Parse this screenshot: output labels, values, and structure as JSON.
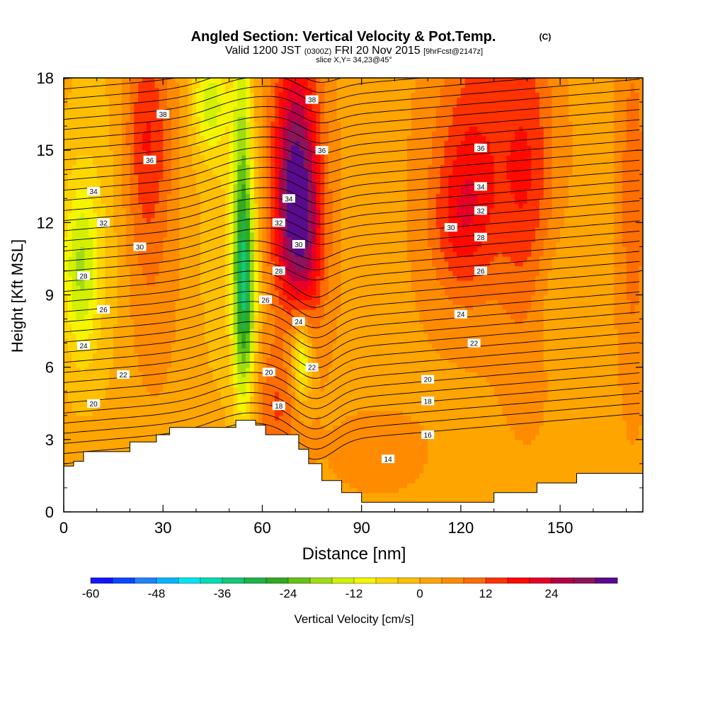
{
  "chart_data": {
    "type": "heatmap",
    "title": "Angled Section: Vertical Velocity & Pot.Temp.",
    "title_mark": "(C)",
    "subtitle_valid": "Valid 1200 JST",
    "subtitle_utc": "(0300Z)",
    "subtitle_date": "FRI 20 Nov 2015",
    "subtitle_fcst": "[9hrFcst@2147z]",
    "subtitle_slice": "slice X,Y= 34,23@45°",
    "xlabel": "Distance [nm]",
    "ylabel": "Height [Kft MSL]",
    "xlim": [
      0,
      175
    ],
    "ylim": [
      0,
      18
    ],
    "xticks": [
      "0",
      "30",
      "60",
      "90",
      "120",
      "150"
    ],
    "yticks": [
      "0",
      "3",
      "6",
      "9",
      "12",
      "15",
      "18"
    ],
    "colorbar": {
      "label": "Vertical Velocity [cm/s]",
      "ticks": [
        "-60",
        "-48",
        "-36",
        "-24",
        "-12",
        "0",
        "12",
        "24"
      ],
      "levels": [
        -60,
        -56,
        -52,
        -48,
        -44,
        -40,
        -36,
        -32,
        -28,
        -24,
        -20,
        -16,
        -12,
        -8,
        -4,
        0,
        4,
        8,
        12,
        16,
        20,
        24,
        28,
        32
      ],
      "colors": [
        "#1414ff",
        "#0a46ff",
        "#1e82ff",
        "#00b4ff",
        "#00e6f0",
        "#00dcb4",
        "#14c878",
        "#1eb446",
        "#32aa1e",
        "#64c314",
        "#a0dc14",
        "#d2f000",
        "#f5f500",
        "#ffd700",
        "#ffbe00",
        "#ffa500",
        "#ff8c00",
        "#ff6e00",
        "#ff3200",
        "#ff0a00",
        "#e60028",
        "#b40046",
        "#8c145a",
        "#5a0a8c"
      ]
    },
    "terrain_kft": [
      [
        0,
        1.9
      ],
      [
        3,
        1.9
      ],
      [
        3,
        2.1
      ],
      [
        6,
        2.1
      ],
      [
        6,
        2.5
      ],
      [
        20,
        2.5
      ],
      [
        20,
        2.9
      ],
      [
        28,
        2.9
      ],
      [
        28,
        3.2
      ],
      [
        32,
        3.2
      ],
      [
        32,
        3.5
      ],
      [
        52,
        3.5
      ],
      [
        52,
        3.8
      ],
      [
        58,
        3.8
      ],
      [
        58,
        3.6
      ],
      [
        61,
        3.6
      ],
      [
        61,
        3.2
      ],
      [
        71,
        3.2
      ],
      [
        71,
        2.6
      ],
      [
        74,
        2.6
      ],
      [
        74,
        2.0
      ],
      [
        78,
        2.0
      ],
      [
        78,
        1.3
      ],
      [
        84,
        1.3
      ],
      [
        84,
        0.8
      ],
      [
        90,
        0.8
      ],
      [
        90,
        0.4
      ],
      [
        130,
        0.4
      ],
      [
        130,
        0.8
      ],
      [
        143,
        0.8
      ],
      [
        143,
        1.2
      ],
      [
        155,
        1.2
      ],
      [
        155,
        1.6
      ],
      [
        175,
        1.6
      ]
    ],
    "theta_contours": [
      {
        "label": "14",
        "base": 2.2,
        "pos": [
          98,
          2.2
        ]
      },
      {
        "label": "16",
        "base": 3.2,
        "pos": [
          110,
          3.2
        ]
      },
      {
        "label": "18",
        "base": 4.6,
        "pos": [
          110,
          4.6
        ]
      },
      {
        "label": "20",
        "base": 5.5,
        "pos": [
          110,
          5.5
        ]
      },
      {
        "label": "22",
        "base": 6.6,
        "pos": [
          124,
          7.0
        ]
      },
      {
        "label": "24",
        "base": 7.8,
        "pos": [
          120,
          8.2
        ]
      },
      {
        "label": "26",
        "base": 9.4,
        "pos": [
          126,
          10.0
        ]
      },
      {
        "label": "28",
        "base": 10.8,
        "pos": [
          126,
          11.4
        ]
      },
      {
        "label": "30",
        "base": 11.2,
        "pos": [
          117,
          11.8
        ]
      },
      {
        "label": "32",
        "base": 11.9,
        "pos": [
          126,
          12.5
        ]
      },
      {
        "label": "34",
        "base": 12.9,
        "pos": [
          126,
          13.5
        ]
      },
      {
        "label": "36",
        "base": 14.4,
        "pos": [
          126,
          15.1
        ]
      },
      {
        "label": "38",
        "base": 16.5,
        "pos": [
          30,
          16.5
        ]
      }
    ],
    "contour_labels": [
      {
        "text": "38",
        "x": 30,
        "y": 16.5
      },
      {
        "text": "36",
        "x": 26,
        "y": 14.6
      },
      {
        "text": "34",
        "x": 9,
        "y": 13.3
      },
      {
        "text": "32",
        "x": 12,
        "y": 12.0
      },
      {
        "text": "30",
        "x": 23,
        "y": 11.0
      },
      {
        "text": "28",
        "x": 6,
        "y": 9.8
      },
      {
        "text": "26",
        "x": 12,
        "y": 8.4
      },
      {
        "text": "24",
        "x": 6,
        "y": 6.9
      },
      {
        "text": "22",
        "x": 18,
        "y": 5.7
      },
      {
        "text": "20",
        "x": 9,
        "y": 4.5
      },
      {
        "text": "38",
        "x": 75,
        "y": 17.1
      },
      {
        "text": "36",
        "x": 78,
        "y": 15.0
      },
      {
        "text": "34",
        "x": 68,
        "y": 13.0
      },
      {
        "text": "32",
        "x": 65,
        "y": 12.0
      },
      {
        "text": "30",
        "x": 71,
        "y": 11.1
      },
      {
        "text": "28",
        "x": 65,
        "y": 10.0
      },
      {
        "text": "26",
        "x": 61,
        "y": 8.8
      },
      {
        "text": "24",
        "x": 71,
        "y": 7.9
      },
      {
        "text": "22",
        "x": 75,
        "y": 6.0
      },
      {
        "text": "20",
        "x": 62,
        "y": 5.8
      },
      {
        "text": "18",
        "x": 65,
        "y": 4.4
      },
      {
        "text": "14",
        "x": 98,
        "y": 2.2
      },
      {
        "text": "16",
        "x": 110,
        "y": 3.2
      },
      {
        "text": "18",
        "x": 110,
        "y": 4.6
      },
      {
        "text": "20",
        "x": 110,
        "y": 5.5
      },
      {
        "text": "22",
        "x": 124,
        "y": 7.0
      },
      {
        "text": "24",
        "x": 120,
        "y": 8.2
      },
      {
        "text": "26",
        "x": 126,
        "y": 10.0
      },
      {
        "text": "28",
        "x": 126,
        "y": 11.4
      },
      {
        "text": "30",
        "x": 117,
        "y": 11.8
      },
      {
        "text": "32",
        "x": 126,
        "y": 12.5
      },
      {
        "text": "34",
        "x": 126,
        "y": 13.5
      },
      {
        "text": "36",
        "x": 126,
        "y": 15.1
      }
    ],
    "velocity_features": [
      {
        "x": 5,
        "y": 10,
        "sx": 4,
        "sy": 2.5,
        "value": -15
      },
      {
        "x": 10,
        "y": 12,
        "sx": 10,
        "sy": 6,
        "value": -6
      },
      {
        "x": 25,
        "y": 16,
        "sx": 5,
        "sy": 3,
        "value": 12
      },
      {
        "x": 25,
        "y": 11,
        "sx": 6,
        "sy": 4,
        "value": 6
      },
      {
        "x": 44,
        "y": 17,
        "sx": 4,
        "sy": 1.5,
        "value": -14
      },
      {
        "x": 54,
        "y": 13,
        "sx": 2.2,
        "sy": 6,
        "value": -18
      },
      {
        "x": 55,
        "y": 9,
        "sx": 2.5,
        "sy": 3,
        "value": -20
      },
      {
        "x": 48,
        "y": 12,
        "sx": 6,
        "sy": 6,
        "value": -6
      },
      {
        "x": 70,
        "y": 14,
        "sx": 5,
        "sy": 4,
        "value": 26
      },
      {
        "x": 72,
        "y": 11,
        "sx": 5,
        "sy": 3,
        "value": 14
      },
      {
        "x": 65,
        "y": 4.5,
        "sx": 5,
        "sy": 2,
        "value": 10
      },
      {
        "x": 70,
        "y": 7,
        "sx": 4,
        "sy": 2,
        "value": -10
      },
      {
        "x": 72,
        "y": 6.3,
        "sx": 2,
        "sy": 1.2,
        "value": -16
      },
      {
        "x": 124,
        "y": 15,
        "sx": 8,
        "sy": 4,
        "value": 12
      },
      {
        "x": 120,
        "y": 12,
        "sx": 6,
        "sy": 2,
        "value": 9
      },
      {
        "x": 140,
        "y": 14,
        "sx": 6,
        "sy": 5,
        "value": 12
      },
      {
        "x": 110,
        "y": 12,
        "sx": 5,
        "sy": 4,
        "value": 1
      },
      {
        "x": 172,
        "y": 13,
        "sx": 3,
        "sy": 5,
        "value": 8
      },
      {
        "x": 95,
        "y": 2.5,
        "sx": 10,
        "sy": 1.2,
        "value": 3
      },
      {
        "x": 148,
        "y": 9,
        "sx": 6,
        "sy": 2,
        "value": -4
      }
    ],
    "background_velocity": 3,
    "grid": false
  }
}
